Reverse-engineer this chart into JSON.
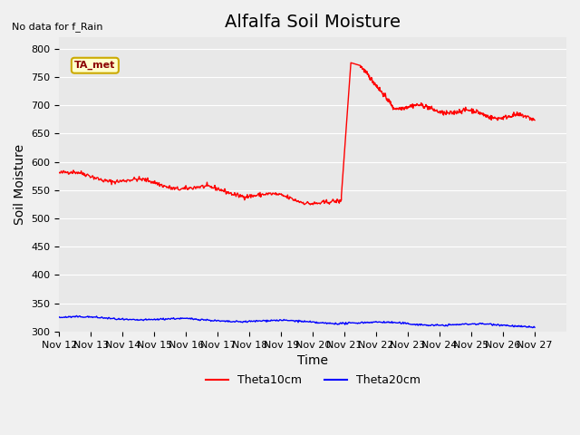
{
  "title": "Alfalfa Soil Moisture",
  "xlabel": "Time",
  "ylabel": "Soil Moisture",
  "no_data_text": "No data for f_Rain",
  "tag_label": "TA_met",
  "ylim": [
    300,
    820
  ],
  "yticks": [
    300,
    350,
    400,
    450,
    500,
    550,
    600,
    650,
    700,
    750,
    800
  ],
  "xlim_days": [
    0,
    16
  ],
  "x_tick_labels": [
    "Nov 12",
    "Nov 13",
    "Nov 14",
    "Nov 15",
    "Nov 16",
    "Nov 17",
    "Nov 18",
    "Nov 19",
    "Nov 20",
    "Nov 21",
    "Nov 22",
    "Nov 23",
    "Nov 24",
    "Nov 25",
    "Nov 26",
    "Nov 27"
  ],
  "bg_color": "#e8e8e8",
  "fig_color": "#f0f0f0",
  "legend_entries": [
    "Theta10cm",
    "Theta20cm"
  ],
  "line_colors": [
    "red",
    "blue"
  ],
  "title_fontsize": 14,
  "axis_label_fontsize": 10,
  "tick_fontsize": 8
}
